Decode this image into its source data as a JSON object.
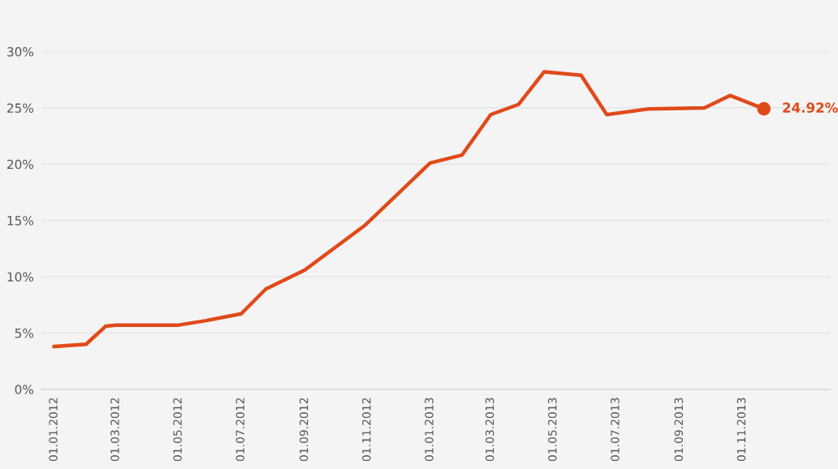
{
  "chart_data": {
    "type": "line",
    "x": [
      "2012-01-01",
      "2012-02-01",
      "2012-02-20",
      "2012-03-01",
      "2012-05-01",
      "2012-05-28",
      "2012-07-01",
      "2012-07-25",
      "2012-09-01",
      "2012-10-30",
      "2013-01-01",
      "2013-02-01",
      "2013-03-01",
      "2013-03-28",
      "2013-04-22",
      "2013-05-28",
      "2013-06-22",
      "2013-08-01",
      "2013-09-25",
      "2013-10-20",
      "2013-11-22"
    ],
    "series": [
      {
        "color": "#e04a1a",
        "values": [
          3.8,
          4.0,
          5.6,
          5.7,
          5.7,
          6.1,
          6.7,
          8.9,
          10.6,
          14.6,
          20.1,
          20.8,
          24.4,
          25.3,
          28.2,
          27.9,
          24.4,
          24.9,
          25.0,
          26.1,
          24.92
        ]
      }
    ],
    "annotations": [
      {
        "text": "24.92%",
        "x": "2013-11-22",
        "y": 24.92
      }
    ],
    "xlim": [
      "2011-12-20",
      "2014-01-25"
    ],
    "xticks": [
      {
        "value": "2012-01-01",
        "label": "01.01.2012"
      },
      {
        "value": "2012-03-01",
        "label": "01.03.2012"
      },
      {
        "value": "2012-05-01",
        "label": "01.05.2012"
      },
      {
        "value": "2012-07-01",
        "label": "01.07.2012"
      },
      {
        "value": "2012-09-01",
        "label": "01.09.2012"
      },
      {
        "value": "2012-11-01",
        "label": "01.11.2012"
      },
      {
        "value": "2013-01-01",
        "label": "01.01.2013"
      },
      {
        "value": "2013-03-01",
        "label": "01.03.2013"
      },
      {
        "value": "2013-05-01",
        "label": "01.05.2013"
      },
      {
        "value": "2013-07-01",
        "label": "01.07.2013"
      },
      {
        "value": "2013-09-01",
        "label": "01.09.2013"
      },
      {
        "value": "2013-11-01",
        "label": "01.11.2013"
      }
    ],
    "ylim": [
      0,
      30
    ],
    "yticks": [
      {
        "value": 0,
        "label": "0%"
      },
      {
        "value": 5,
        "label": "5%"
      },
      {
        "value": 10,
        "label": "10%"
      },
      {
        "value": 15,
        "label": "15%"
      },
      {
        "value": 20,
        "label": "20%"
      },
      {
        "value": 25,
        "label": "25%"
      },
      {
        "value": 30,
        "label": "30%"
      }
    ],
    "grid": "y",
    "marker": "none",
    "line_style": "solid"
  }
}
